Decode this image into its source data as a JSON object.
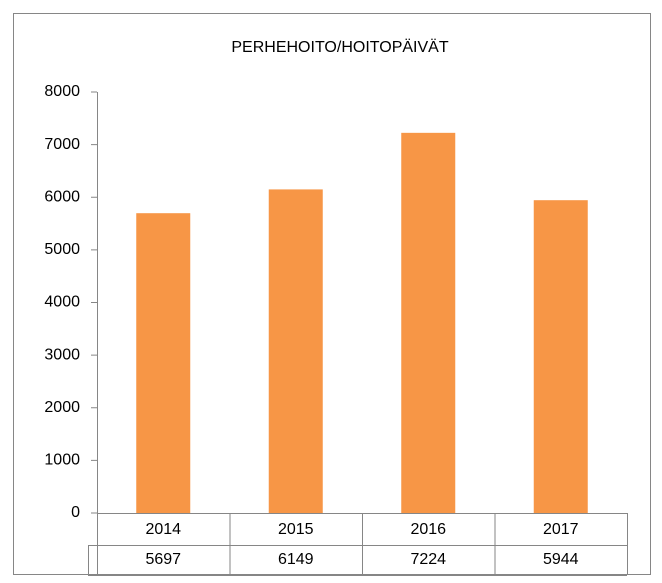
{
  "chart_data": {
    "type": "bar",
    "title": "PERHEHOITO/HOITOPÄIVÄT",
    "categories": [
      "2014",
      "2015",
      "2016",
      "2017"
    ],
    "values": [
      5697,
      6149,
      7224,
      5944
    ],
    "color": "#f79646",
    "ylim": [
      0,
      8000
    ],
    "yticks": [
      0,
      1000,
      2000,
      3000,
      4000,
      5000,
      6000,
      7000,
      8000
    ],
    "grid": false
  }
}
